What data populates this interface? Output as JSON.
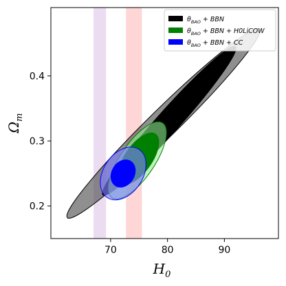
{
  "chart_data": {
    "type": "contour",
    "xlabel": "H",
    "xlabel_sub": "0",
    "ylabel": "Ω",
    "ylabel_sub": "m",
    "xlim": [
      59.5,
      99.5
    ],
    "ylim": [
      0.15,
      0.505
    ],
    "xticks": [
      70,
      80,
      90
    ],
    "yticks": [
      0.2,
      0.3,
      0.4
    ],
    "grid": false,
    "legend_position": "top-right",
    "bands": [
      {
        "name": "purple-band",
        "x_range": [
          67.0,
          69.2
        ],
        "color": "#c89ad6",
        "opacity": 0.35
      },
      {
        "name": "red-band",
        "x_range": [
          72.7,
          75.5
        ],
        "color": "#ff6b6b",
        "opacity": 0.28
      }
    ],
    "series": [
      {
        "name": "θBAO + BBN",
        "legend_math": [
          "θ",
          "BAO",
          " + BBN"
        ],
        "color": "#000000",
        "contours": [
          {
            "level": "95%",
            "center": [
              79.3,
              0.327
            ],
            "points": [
              [
                63.2,
                0.18
              ],
              [
                97.0,
                0.47
              ]
            ],
            "width_frac": 0.105,
            "fill": "#444444",
            "fill_opacity": 0.6
          },
          {
            "level": "68%",
            "center": [
              80.3,
              0.331
            ],
            "points": [
              [
                68.7,
                0.215
              ],
              [
                92.0,
                0.443
              ]
            ],
            "width_frac": 0.113,
            "fill": "#000000",
            "fill_opacity": 1.0
          }
        ]
      },
      {
        "name": "θBAO + BBN + H0LiCOW",
        "legend_math": [
          "θ",
          "BAO",
          " + BBN + H0LiCOW"
        ],
        "color": "#008000",
        "contours": [
          {
            "level": "95%",
            "center": [
              74.7,
              0.27
            ],
            "points": [
              [
                70.3,
                0.212
              ],
              [
                79.2,
                0.327
              ]
            ],
            "width_frac": 0.38,
            "fill": "#90ee90",
            "fill_opacity": 0.6
          },
          {
            "level": "68%",
            "center": [
              74.9,
              0.273
            ],
            "points": [
              [
                71.8,
                0.235
              ],
              [
                77.8,
                0.31
              ]
            ],
            "width_frac": 0.45,
            "fill": "#008000",
            "fill_opacity": 1.0
          }
        ]
      },
      {
        "name": "θBAO + BBN + CC",
        "legend_math": [
          "θ",
          "BAO",
          " + BBN + CC"
        ],
        "color": "#0000ff",
        "contours": [
          {
            "level": "95%",
            "center": [
              72.2,
              0.25
            ],
            "points": [
              [
                69.4,
                0.213
              ],
              [
                75.0,
                0.287
              ]
            ],
            "width_frac": 0.68,
            "fill": "#8080ff",
            "fill_opacity": 0.65
          },
          {
            "level": "68%",
            "center": [
              72.2,
              0.25
            ],
            "points": [
              [
                70.9,
                0.231
              ],
              [
                73.5,
                0.269
              ]
            ],
            "width_frac": 0.78,
            "fill": "#0000ff",
            "fill_opacity": 1.0
          }
        ]
      }
    ]
  }
}
